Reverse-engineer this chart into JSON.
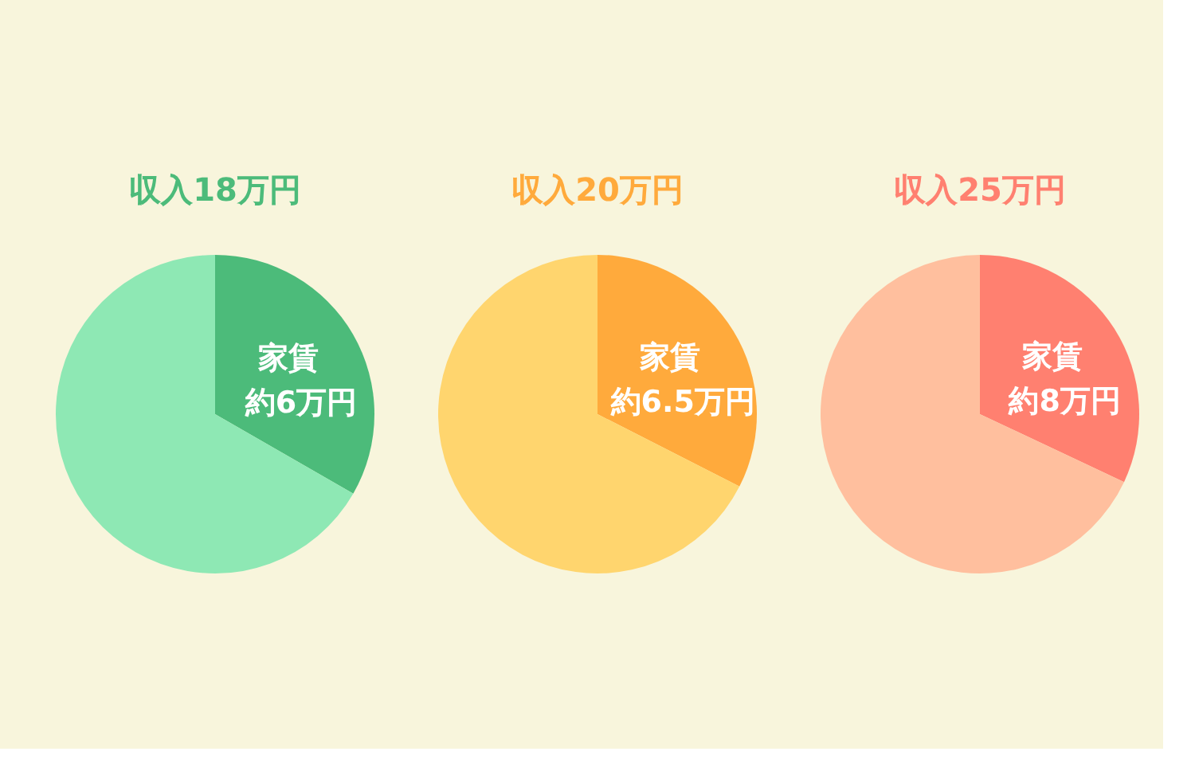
{
  "chart_data": [
    {
      "type": "pie",
      "title": "収入18万円",
      "categories": [
        "家賃",
        null
      ],
      "values": [
        33.3,
        66.7
      ],
      "colors": [
        "#4cbb7a",
        "#8ee8b4"
      ],
      "value_labels": [
        "約6万円",
        null
      ]
    },
    {
      "type": "pie",
      "title": "収入20万円",
      "categories": [
        "家賃",
        null
      ],
      "values": [
        32.5,
        67.5
      ],
      "colors": [
        "#ffaa3c",
        "#ffd56e"
      ],
      "value_labels": [
        "約6.5万円",
        null
      ]
    },
    {
      "type": "pie",
      "title": "収入25万円",
      "categories": [
        "家賃",
        null
      ],
      "values": [
        32,
        68
      ],
      "colors": [
        "#ff8070",
        "#ffbf9e"
      ],
      "value_labels": [
        "約8万円",
        null
      ]
    }
  ]
}
